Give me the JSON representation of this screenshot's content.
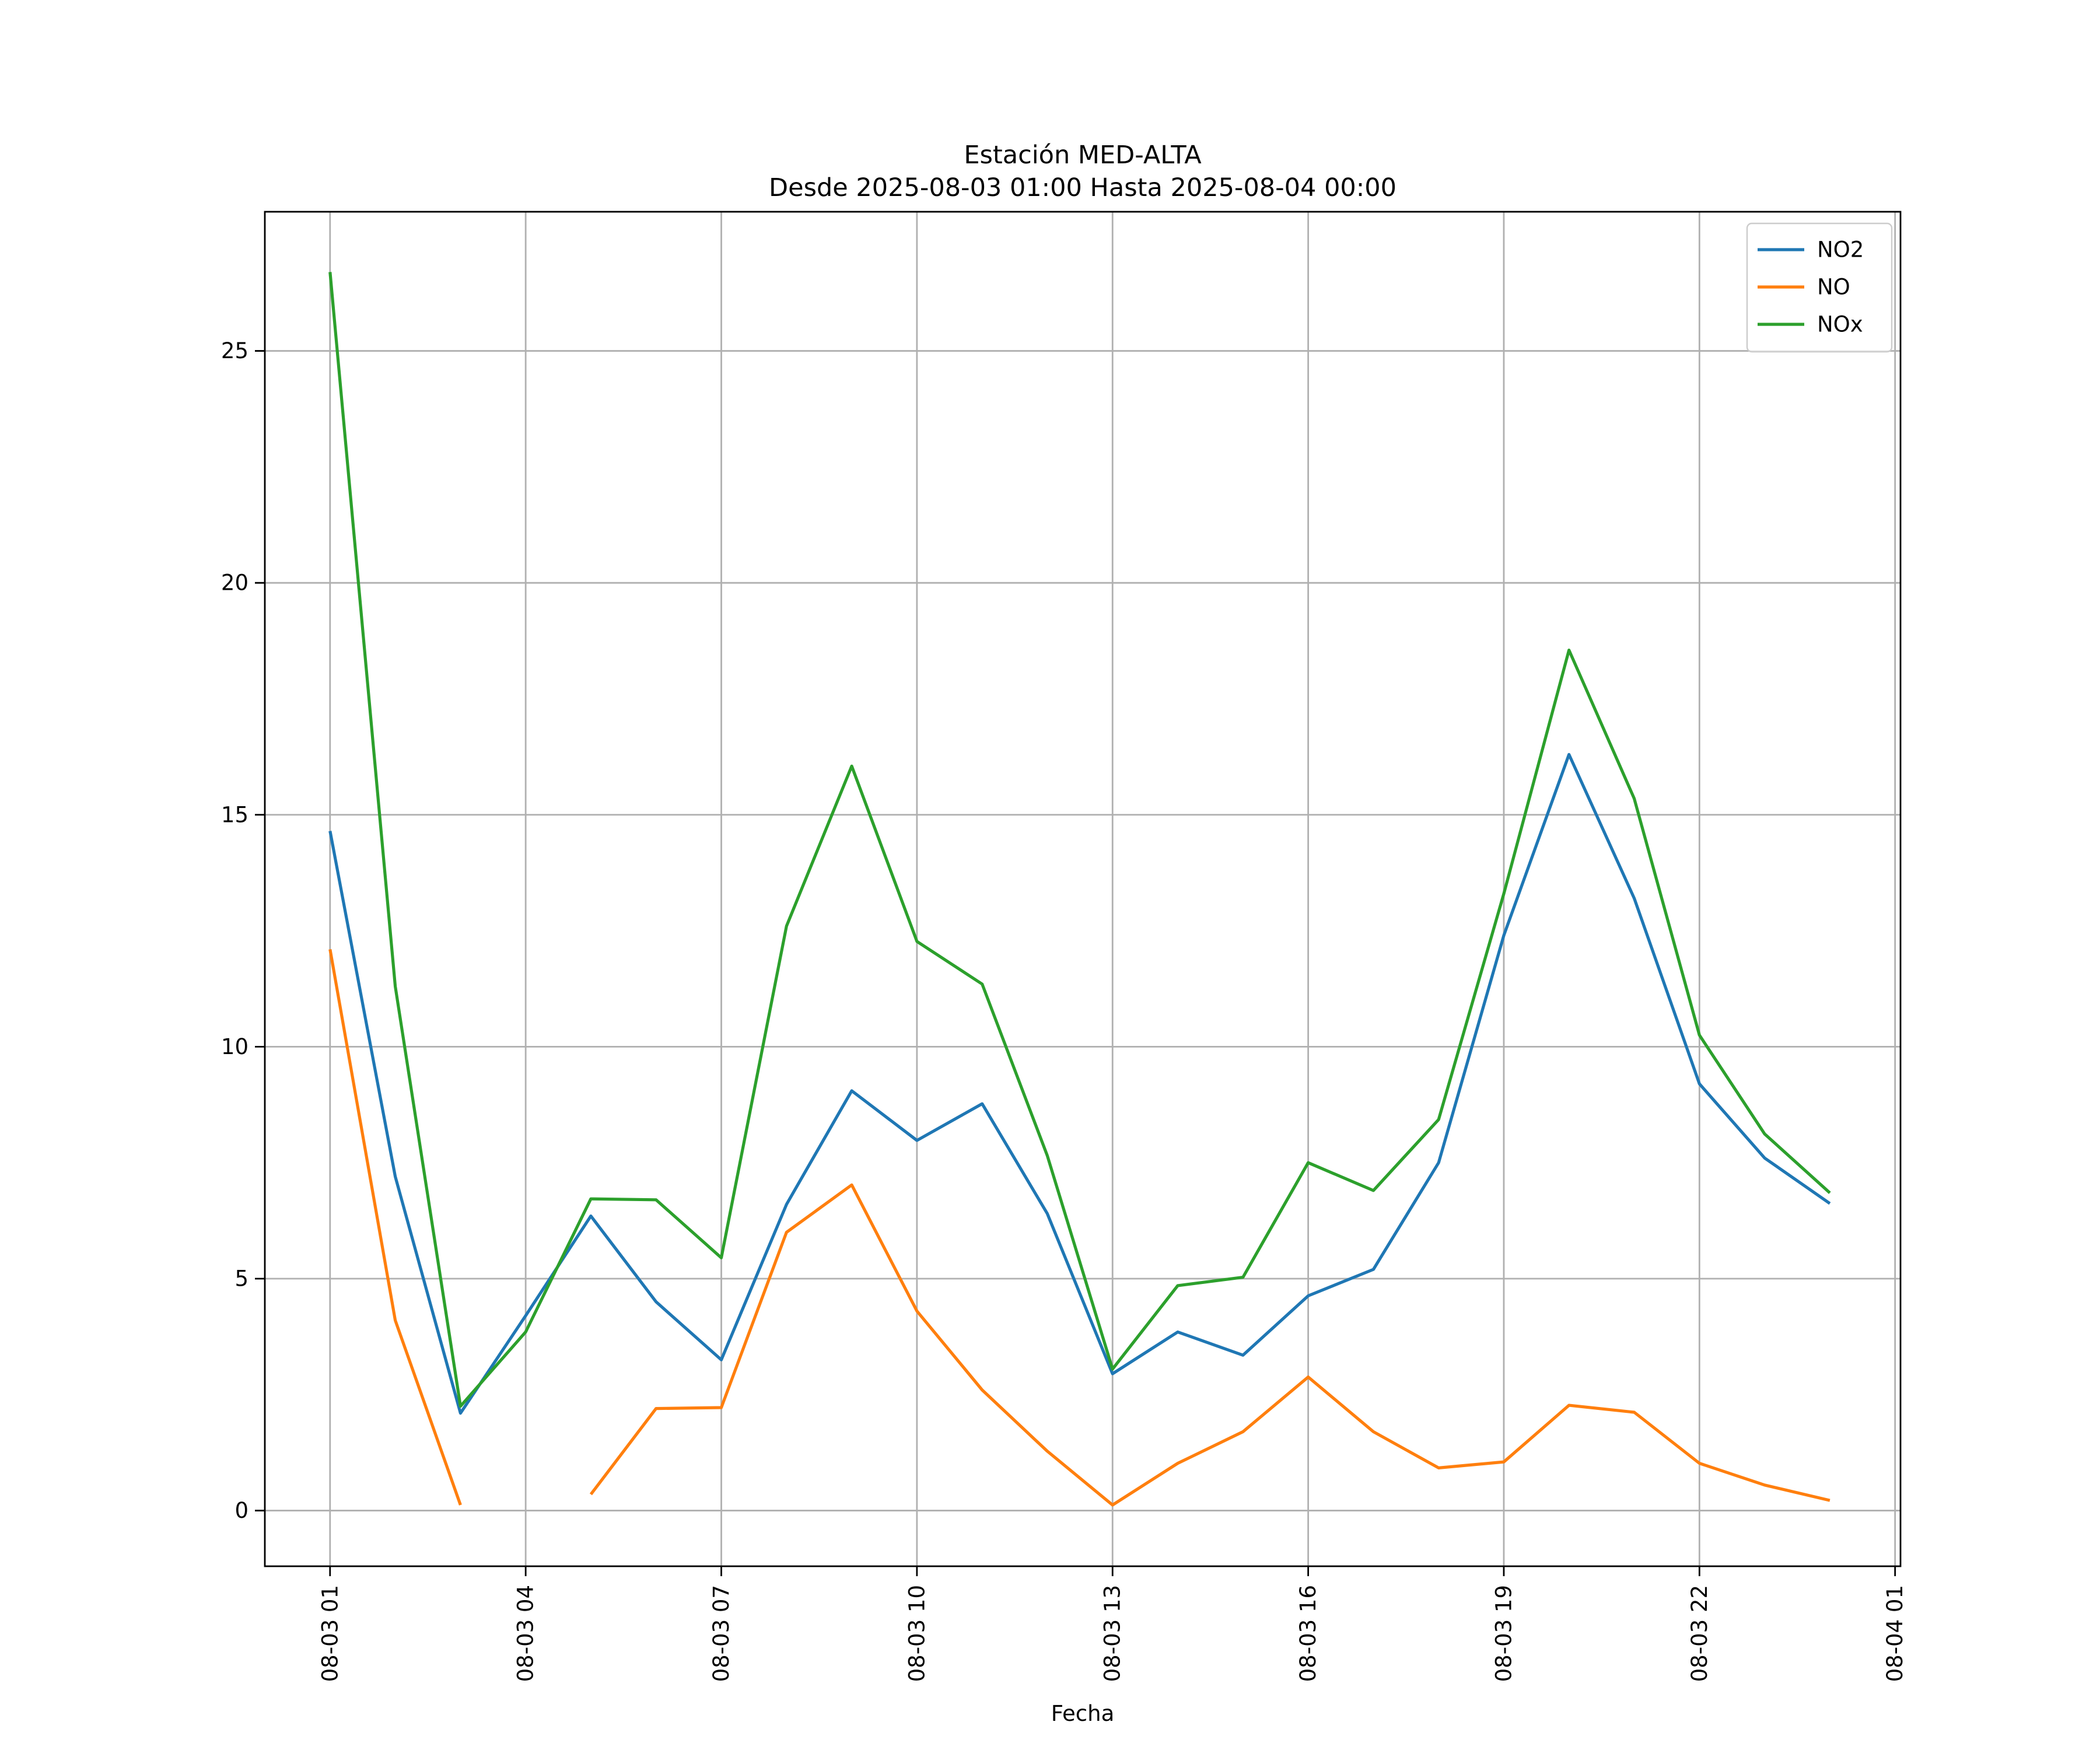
{
  "chart_data": {
    "type": "line",
    "title": "Estación MED-ALTA",
    "subtitle": "Desde 2025-08-03 01:00 Hasta 2025-08-04 00:00",
    "xlabel": "Fecha",
    "ylabel": "",
    "x": [
      "2025-08-03 01:00",
      "2025-08-03 02:00",
      "2025-08-03 03:00",
      "2025-08-03 04:00",
      "2025-08-03 05:00",
      "2025-08-03 06:00",
      "2025-08-03 07:00",
      "2025-08-03 08:00",
      "2025-08-03 09:00",
      "2025-08-03 10:00",
      "2025-08-03 11:00",
      "2025-08-03 12:00",
      "2025-08-03 13:00",
      "2025-08-03 14:00",
      "2025-08-03 15:00",
      "2025-08-03 16:00",
      "2025-08-03 17:00",
      "2025-08-03 18:00",
      "2025-08-03 19:00",
      "2025-08-03 20:00",
      "2025-08-03 21:00",
      "2025-08-03 22:00",
      "2025-08-03 23:00",
      "2025-08-04 00:00"
    ],
    "xlim": [
      "2025-08-03 00:00",
      "2025-08-04 01:05"
    ],
    "ylim": [
      -1.2,
      28
    ],
    "x_tick_labels": [
      "08-03 01",
      "08-03 04",
      "08-03 07",
      "08-03 10",
      "08-03 13",
      "08-03 16",
      "08-03 19",
      "08-03 22",
      "08-04 01"
    ],
    "x_ticks": [
      "2025-08-03 01:00",
      "2025-08-03 04:00",
      "2025-08-03 07:00",
      "2025-08-03 10:00",
      "2025-08-03 13:00",
      "2025-08-03 16:00",
      "2025-08-03 19:00",
      "2025-08-03 22:00",
      "2025-08-04 01:00"
    ],
    "y_ticks": [
      0,
      5,
      10,
      15,
      20,
      25
    ],
    "grid": true,
    "legend_position": "top-right",
    "series": [
      {
        "name": "NO2",
        "color": "#1f77b4",
        "values": [
          14.65,
          7.2,
          2.1,
          4.2,
          6.35,
          4.5,
          3.25,
          6.6,
          9.05,
          7.98,
          8.77,
          6.4,
          2.95,
          3.85,
          3.35,
          4.63,
          5.2,
          7.5,
          12.4,
          16.3,
          13.2,
          9.2,
          7.6,
          6.62
        ]
      },
      {
        "name": "NO",
        "color": "#ff7f0e",
        "values": [
          12.1,
          4.1,
          0.12,
          null,
          0.35,
          2.2,
          2.22,
          6.0,
          7.02,
          4.3,
          2.6,
          1.28,
          0.12,
          1.02,
          1.7,
          2.88,
          1.7,
          0.92,
          1.05,
          2.27,
          2.12,
          1.02,
          0.55,
          0.22
        ]
      },
      {
        "name": "NOx",
        "color": "#2ca02c",
        "values": [
          26.7,
          11.3,
          2.25,
          3.85,
          6.72,
          6.7,
          5.45,
          12.6,
          16.05,
          12.27,
          11.35,
          7.65,
          3.05,
          4.85,
          5.03,
          7.5,
          6.9,
          8.43,
          13.3,
          18.55,
          15.35,
          10.25,
          8.12,
          6.85
        ]
      }
    ]
  }
}
